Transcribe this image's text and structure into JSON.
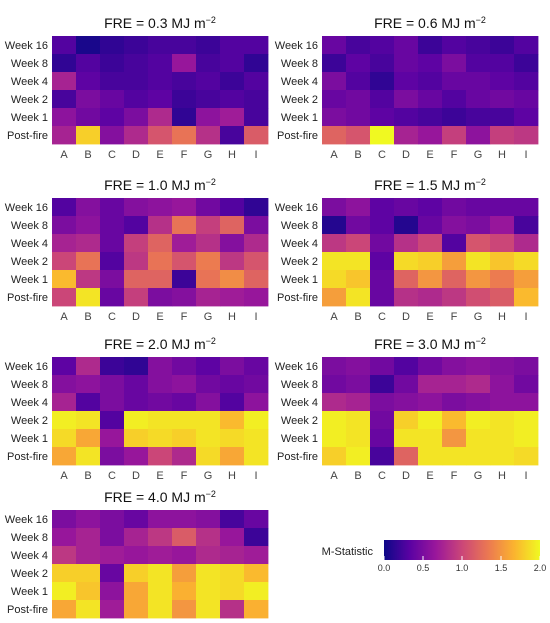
{
  "chart_data": {
    "type": "heatmap",
    "rows": [
      "Week 16",
      "Week 8",
      "Week 4",
      "Week 2",
      "Week 1",
      "Post-fire"
    ],
    "columns": [
      "A",
      "B",
      "C",
      "D",
      "E",
      "F",
      "G",
      "H",
      "I"
    ],
    "color_scale": {
      "name": "plasma",
      "range": [
        0.0,
        2.0
      ],
      "ticks": [
        "0.0",
        "0.5",
        "1.0",
        "1.5",
        "2.0"
      ],
      "title": "M-Statistic",
      "colors": [
        "#0d0887",
        "#5b02a3",
        "#9a179b",
        "#cb4678",
        "#eb7852",
        "#fbb32f",
        "#f0f921"
      ]
    },
    "panels": [
      {
        "title_main": "FRE = 0.3 MJ m",
        "title_sup": "−2",
        "values": [
          [
            0.3,
            0.05,
            0.15,
            0.2,
            0.25,
            0.25,
            0.2,
            0.3,
            0.3
          ],
          [
            0.15,
            0.3,
            0.2,
            0.25,
            0.3,
            0.65,
            0.25,
            0.3,
            0.15
          ],
          [
            0.75,
            0.35,
            0.25,
            0.25,
            0.3,
            0.25,
            0.3,
            0.2,
            0.3
          ],
          [
            0.25,
            0.5,
            0.4,
            0.3,
            0.35,
            0.2,
            0.25,
            0.3,
            0.25
          ],
          [
            0.6,
            0.45,
            0.35,
            0.5,
            0.8,
            0.15,
            0.6,
            0.7,
            0.25
          ],
          [
            0.75,
            1.8,
            0.55,
            0.8,
            1.1,
            1.3,
            0.85,
            0.25,
            1.15
          ]
        ]
      },
      {
        "title_main": "FRE = 0.6 MJ m",
        "title_sup": "−2",
        "values": [
          [
            0.4,
            0.25,
            0.3,
            0.4,
            0.2,
            0.3,
            0.25,
            0.2,
            0.3
          ],
          [
            0.2,
            0.35,
            0.25,
            0.4,
            0.35,
            0.5,
            0.3,
            0.3,
            0.2
          ],
          [
            0.5,
            0.3,
            0.15,
            0.35,
            0.3,
            0.4,
            0.4,
            0.35,
            0.3
          ],
          [
            0.4,
            0.45,
            0.3,
            0.5,
            0.4,
            0.3,
            0.4,
            0.45,
            0.4
          ],
          [
            0.5,
            0.45,
            0.35,
            0.3,
            0.25,
            0.2,
            0.25,
            0.25,
            0.35
          ],
          [
            1.2,
            1.1,
            2.0,
            0.75,
            0.65,
            0.95,
            0.6,
            0.95,
            0.9
          ]
        ]
      },
      {
        "title_main": "FRE = 1.0 MJ m",
        "title_sup": "−2",
        "values": [
          [
            0.3,
            0.55,
            0.4,
            0.55,
            0.6,
            0.65,
            0.45,
            0.3,
            0.15
          ],
          [
            0.5,
            0.6,
            0.4,
            0.3,
            0.85,
            1.3,
            0.95,
            1.2,
            0.5
          ],
          [
            0.75,
            0.8,
            0.4,
            0.95,
            1.2,
            0.7,
            0.85,
            0.55,
            0.8
          ],
          [
            1.0,
            1.3,
            0.3,
            0.9,
            1.3,
            1.1,
            1.35,
            0.9,
            1.1
          ],
          [
            1.7,
            0.9,
            0.5,
            1.2,
            1.2,
            0.2,
            1.3,
            1.45,
            1.2
          ],
          [
            1.0,
            1.9,
            0.4,
            0.95,
            0.5,
            0.55,
            0.75,
            0.7,
            0.65
          ]
        ]
      },
      {
        "title_main": "FRE = 1.5 MJ m",
        "title_sup": "−2",
        "values": [
          [
            0.5,
            0.6,
            0.35,
            0.4,
            0.35,
            0.45,
            0.4,
            0.4,
            0.4
          ],
          [
            0.1,
            0.45,
            0.35,
            0.1,
            0.4,
            0.55,
            0.5,
            0.65,
            0.25
          ],
          [
            0.9,
            1.0,
            0.45,
            0.85,
            1.0,
            0.3,
            1.1,
            1.0,
            0.8
          ],
          [
            1.9,
            1.9,
            0.35,
            1.85,
            1.8,
            1.55,
            1.9,
            1.75,
            1.85
          ],
          [
            1.85,
            1.75,
            0.4,
            1.2,
            1.5,
            1.2,
            1.5,
            1.35,
            1.55
          ],
          [
            1.55,
            1.9,
            0.4,
            0.85,
            0.8,
            0.9,
            1.05,
            1.15,
            1.7
          ]
        ]
      },
      {
        "title_main": "FRE = 2.0 MJ m",
        "title_sup": "−2",
        "values": [
          [
            0.35,
            0.8,
            0.2,
            0.15,
            0.55,
            0.45,
            0.35,
            0.5,
            0.4
          ],
          [
            0.55,
            0.6,
            0.5,
            0.4,
            0.55,
            0.6,
            0.45,
            0.4,
            0.45
          ],
          [
            0.75,
            0.3,
            0.5,
            0.4,
            0.45,
            0.4,
            0.55,
            0.3,
            0.6
          ],
          [
            1.95,
            1.9,
            0.3,
            1.95,
            1.9,
            1.9,
            1.9,
            1.7,
            1.95
          ],
          [
            1.85,
            1.6,
            0.65,
            1.8,
            1.85,
            1.8,
            1.9,
            1.85,
            1.9
          ],
          [
            1.6,
            1.9,
            0.5,
            0.65,
            1.0,
            0.8,
            1.85,
            1.6,
            1.9
          ]
        ]
      },
      {
        "title_main": "FRE = 3.0 MJ m",
        "title_sup": "−2",
        "values": [
          [
            0.5,
            0.55,
            0.45,
            0.3,
            0.45,
            0.55,
            0.6,
            0.55,
            0.5
          ],
          [
            0.45,
            0.5,
            0.2,
            0.45,
            0.75,
            0.75,
            0.8,
            0.6,
            0.45
          ],
          [
            0.8,
            0.75,
            0.5,
            0.55,
            0.6,
            0.5,
            0.55,
            0.6,
            0.6
          ],
          [
            1.95,
            1.9,
            0.45,
            1.8,
            1.95,
            1.7,
            1.95,
            1.9,
            1.95
          ],
          [
            1.95,
            1.9,
            0.4,
            1.9,
            1.9,
            1.5,
            1.9,
            1.9,
            1.95
          ],
          [
            1.8,
            1.95,
            0.25,
            1.2,
            1.9,
            1.9,
            1.9,
            1.9,
            1.85
          ]
        ]
      },
      {
        "title_main": "FRE = 4.0 MJ m",
        "title_sup": "−2",
        "values": [
          [
            0.5,
            0.6,
            0.5,
            0.4,
            0.6,
            0.6,
            0.55,
            0.25,
            0.4
          ],
          [
            0.65,
            0.75,
            0.5,
            0.75,
            0.9,
            1.15,
            0.85,
            0.65,
            0.2
          ],
          [
            0.9,
            0.75,
            0.7,
            0.65,
            0.7,
            0.65,
            0.8,
            0.75,
            0.7
          ],
          [
            1.8,
            1.8,
            0.4,
            1.8,
            1.9,
            1.55,
            1.9,
            1.85,
            1.7
          ],
          [
            1.95,
            1.75,
            0.6,
            1.6,
            1.9,
            1.65,
            1.9,
            1.85,
            1.95
          ],
          [
            1.6,
            1.9,
            0.7,
            1.6,
            1.9,
            1.5,
            1.9,
            0.85,
            1.65
          ]
        ]
      }
    ]
  }
}
